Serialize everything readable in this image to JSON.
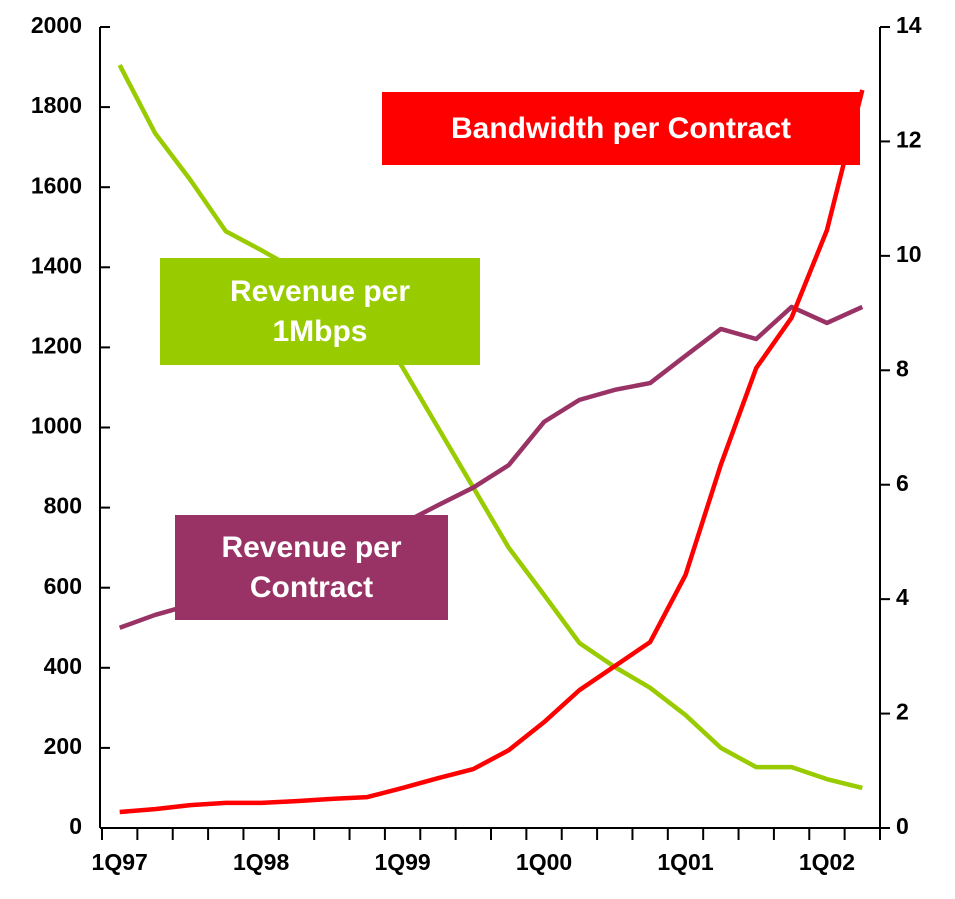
{
  "chart_data": {
    "type": "line",
    "categories": [
      "1Q97",
      null,
      null,
      null,
      "1Q98",
      null,
      null,
      null,
      "1Q99",
      null,
      null,
      null,
      "1Q00",
      null,
      null,
      null,
      "1Q01",
      null,
      null,
      null,
      "1Q02",
      null
    ],
    "series": [
      {
        "name": "Revenue per 1Mbps",
        "color": "#99cc00",
        "axis": "y",
        "values": [
          1905,
          1735,
          1618,
          1490,
          1443,
          1393,
          1350,
          1290,
          1150,
          1000,
          850,
          700,
          582,
          462,
          402,
          350,
          282,
          200,
          152,
          152,
          122,
          100
        ]
      },
      {
        "name": "Revenue per Contract",
        "color": "#993366",
        "axis": "y",
        "values": [
          500,
          532,
          557,
          580,
          610,
          640,
          680,
          720,
          760,
          806,
          850,
          906,
          1014,
          1069,
          1094,
          1111,
          1179,
          1246,
          1221,
          1301,
          1261,
          1301
        ]
      },
      {
        "name": "Bandwidth per Contract",
        "color": "#ff0000",
        "axis": "y2",
        "values": [
          0.28,
          0.33,
          0.4,
          0.44,
          0.44,
          0.47,
          0.51,
          0.54,
          0.7,
          0.87,
          1.03,
          1.36,
          1.85,
          2.41,
          2.83,
          3.25,
          4.42,
          6.35,
          8.04,
          8.92,
          10.45,
          12.9
        ]
      }
    ],
    "ylim": [
      0,
      2000
    ],
    "yticks": [
      0,
      200,
      400,
      600,
      800,
      1000,
      1200,
      1400,
      1600,
      1800,
      2000
    ],
    "y2lim": [
      0,
      14
    ],
    "y2ticks": [
      0,
      2,
      4,
      6,
      8,
      10,
      12,
      14
    ]
  }
}
